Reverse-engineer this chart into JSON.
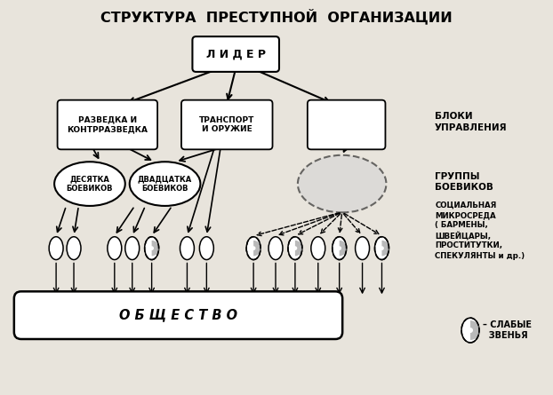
{
  "title": "СТРУКТУРА  ПРЕСТУПНОЙ  ОРГАНИЗАЦИИ",
  "title_fontsize": 11.5,
  "bg_color": "#e8e4dc",
  "box_facecolor": "white",
  "box_edgecolor": "black",
  "text_color": "black",
  "lider_text": "Л И Д Е Р",
  "box1_text": "РАЗВЕДКА И\nКОНТРРАЗВЕДКА",
  "box2_text": "ТРАНСПОРТ\nИ ОРУЖИЕ",
  "box3_text": "",
  "label_bloki": "БЛОКИ\nУПРАВЛЕНИЯ",
  "label_gruppy": "ГРУППЫ\nБОЕВИКОВ",
  "label_social": "СОЦИАЛЬНАЯ\nМИКРОСРЕДА\n( БАРМЕНЫ,\nШВЕЙЦАРЫ,\nПРОСТИТУТКИ,\nСПЕКУЛЯНТЫ и др.)",
  "ellipse1_text": "ДЕСЯТКА\nБОЕВИКОВ",
  "ellipse2_text": "ДВАДЦАТКА\nБОЕВИКОВ",
  "society_text": "О Б Щ Е С Т В О",
  "legend_text": "– СЛАБЫЕ\n  ЗВЕНЬЯ"
}
